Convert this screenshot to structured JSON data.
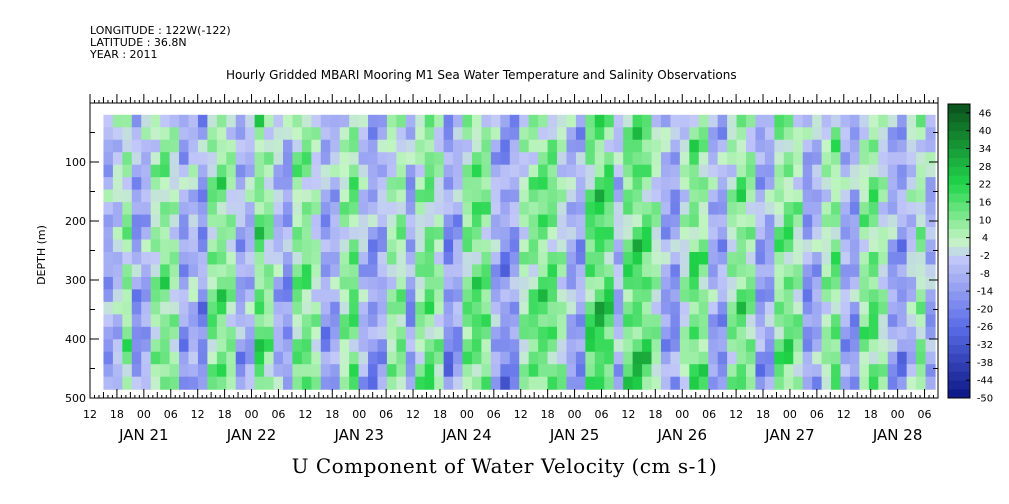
{
  "header": {
    "longitude": "LONGITUDE : 122W(-122)",
    "latitude": "LATITUDE : 36.8N",
    "year": "YEAR : 2011"
  },
  "chart_data": {
    "type": "heatmap",
    "title": "Hourly Gridded MBARI Mooring M1 Sea Water Temperature and Salinity Observations",
    "xlabel": "U Component of Water Velocity (cm s-1)",
    "ylabel": "DEPTH (m)",
    "y_axis": {
      "ticks": [
        100,
        200,
        300,
        400,
        500
      ],
      "range": [
        0,
        500
      ],
      "data_range": [
        20,
        485
      ],
      "inverted": true
    },
    "x_axis": {
      "hour_ticks": [
        "12",
        "18",
        "00",
        "06",
        "12",
        "18",
        "00",
        "06",
        "12",
        "18",
        "00",
        "06",
        "12",
        "18",
        "00",
        "06",
        "12",
        "18",
        "00",
        "06",
        "12",
        "18",
        "00",
        "06",
        "12",
        "18",
        "00",
        "06",
        "12",
        "18",
        "00",
        "06"
      ],
      "day_labels": [
        "JAN 21",
        "JAN 22",
        "JAN 23",
        "JAN 24",
        "JAN 25",
        "JAN 26",
        "JAN 27",
        "JAN 28"
      ],
      "start": "2011-01-20 12:00",
      "end": "2011-01-28 09:00",
      "data_start": "2011-01-20 15:00"
    },
    "colorbar": {
      "labels": [
        46,
        40,
        34,
        28,
        22,
        16,
        10,
        4,
        -2,
        -8,
        -14,
        -20,
        -26,
        -32,
        -38,
        -44,
        -50
      ],
      "min": -50,
      "max": 49,
      "step": 3
    },
    "column_profiles": [
      -12,
      -4,
      8,
      -16,
      -10,
      6,
      12,
      4,
      -14,
      -6,
      -18,
      10,
      14,
      6,
      -12,
      -8,
      16,
      8,
      -8,
      -16,
      10,
      12,
      2,
      -14,
      -10,
      6,
      14,
      -6,
      -16,
      -10,
      4,
      8,
      -14,
      6,
      14,
      4,
      -18,
      -12,
      10,
      16,
      12,
      -10,
      -18,
      -14,
      4,
      12,
      16,
      14,
      2,
      -10,
      -14,
      16,
      22,
      18,
      -8,
      14,
      20,
      16,
      4,
      -12,
      -16,
      2,
      16,
      10,
      -10,
      -14,
      6,
      14,
      8,
      -14,
      -12,
      10,
      14,
      6,
      -16,
      -10,
      4,
      12,
      -10,
      -14,
      8,
      14,
      2,
      -12,
      -16,
      -4,
      6,
      -10
    ],
    "colors": {
      "neg_strong": "#0b1683",
      "neg_mid": "#5a6ce8",
      "neg_weak": "#c2c8f8",
      "pos_weak": "#c4f5c4",
      "pos_mid": "#21d64a",
      "pos_strong": "#0b4f1e"
    }
  }
}
